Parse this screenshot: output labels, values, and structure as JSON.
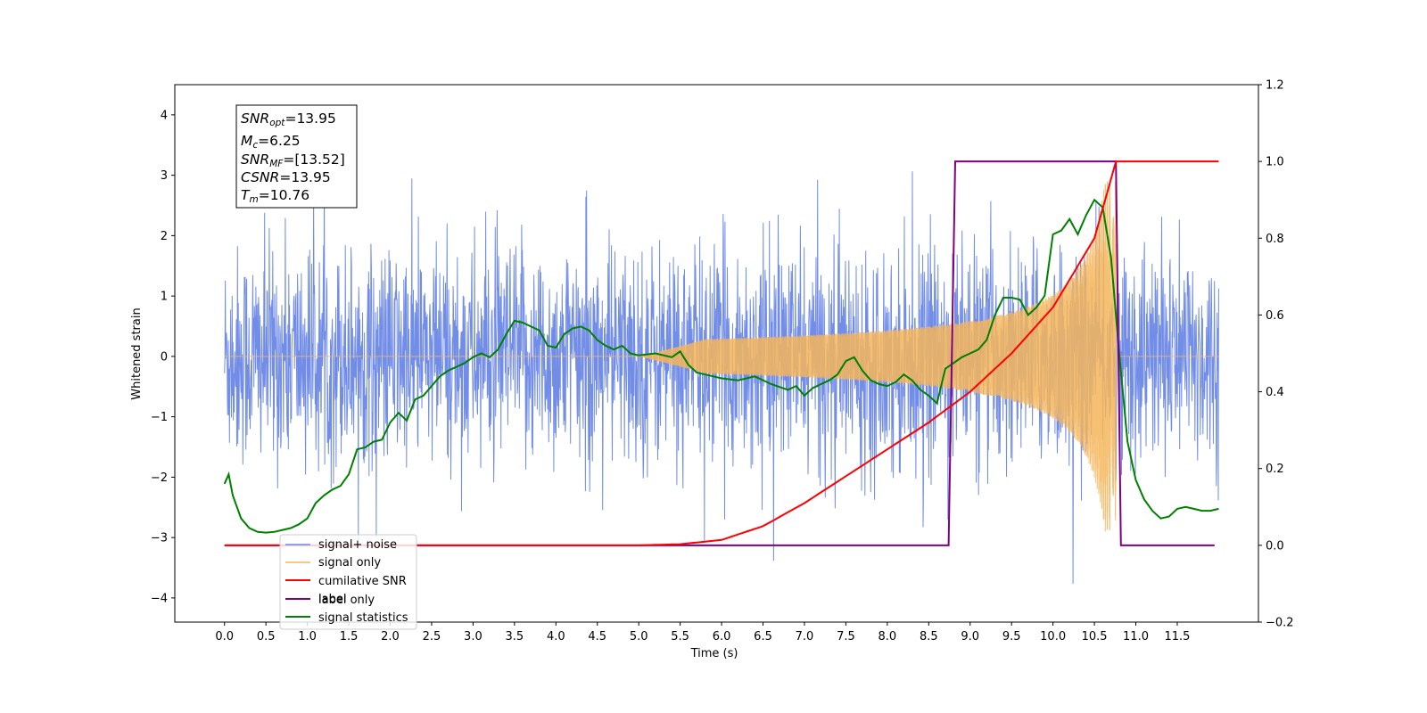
{
  "chart_data": {
    "type": "line",
    "xlabel": "Time (s)",
    "ylabel": "Whitened strain",
    "xlim": [
      -0.6,
      12.48
    ],
    "ylim": [
      -4.4,
      4.5
    ],
    "y2lim": [
      -0.2,
      1.2
    ],
    "x_ticks": [
      "0.0",
      "0.5",
      "1.0",
      "1.5",
      "2.0",
      "2.5",
      "3.0",
      "3.5",
      "4.0",
      "4.5",
      "5.0",
      "5.5",
      "6.0",
      "6.5",
      "7.0",
      "7.5",
      "8.0",
      "8.5",
      "9.0",
      "9.5",
      "10.0",
      "10.5",
      "11.0",
      "11.5"
    ],
    "y_ticks": [
      "−4",
      "−3",
      "−2",
      "−1",
      "0",
      "1",
      "2",
      "3",
      "4"
    ],
    "y2_ticks": [
      "−0.2",
      "0.0",
      "0.2",
      "0.4",
      "0.6",
      "0.8",
      "1.0",
      "1.2"
    ],
    "legend_position": "lower-left",
    "colors": {
      "signal_noise": "#6a87e6",
      "signal_only": "#f5b55a",
      "cumulative_snr": "#ff0000",
      "label": "#800080",
      "label_only": "#bcb8b0",
      "signal_statistics": "#008000"
    },
    "info_box": {
      "snr_opt": "13.95",
      "mc": "6.25",
      "snr_mf": "[13.52]",
      "csnr": "13.95",
      "tm": "10.76"
    },
    "series": [
      {
        "name": "signal+ noise",
        "noise_sigma": 0.9,
        "range": [
          0,
          12
        ]
      },
      {
        "name": "signal only",
        "chirp_start": 5.0,
        "chirp_end": 10.76,
        "peak_amplitude": 2.9
      },
      {
        "name": "cumilative SNR",
        "axis": "right",
        "x": [
          0.0,
          5.0,
          5.5,
          6.0,
          6.5,
          7.0,
          7.5,
          8.0,
          8.5,
          9.0,
          9.5,
          10.0,
          10.5,
          10.76,
          12.0
        ],
        "y": [
          0.0,
          0.0,
          0.003,
          0.014,
          0.05,
          0.11,
          0.18,
          0.25,
          0.32,
          0.4,
          0.5,
          0.62,
          0.8,
          1.0,
          1.0
        ]
      },
      {
        "name": "label",
        "axis": "right",
        "x": [
          0.0,
          8.74,
          8.82,
          10.76,
          10.82,
          11.95
        ],
        "y": [
          0.0,
          0.0,
          1.0,
          1.0,
          0.0,
          0.0
        ]
      },
      {
        "name": "label only",
        "axis": "right",
        "hidden": true
      },
      {
        "name": "signal statistics",
        "axis": "right",
        "x": [
          0.0,
          0.05,
          0.1,
          0.2,
          0.3,
          0.4,
          0.5,
          0.6,
          0.7,
          0.8,
          0.9,
          1.0,
          1.1,
          1.2,
          1.3,
          1.4,
          1.5,
          1.6,
          1.7,
          1.8,
          1.9,
          2.0,
          2.1,
          2.2,
          2.3,
          2.4,
          2.5,
          2.6,
          2.7,
          2.8,
          2.9,
          3.0,
          3.1,
          3.2,
          3.3,
          3.4,
          3.5,
          3.6,
          3.7,
          3.8,
          3.9,
          4.0,
          4.1,
          4.2,
          4.3,
          4.4,
          4.5,
          4.6,
          4.7,
          4.8,
          4.9,
          5.0,
          5.2,
          5.4,
          5.5,
          5.6,
          5.7,
          5.8,
          5.9,
          6.0,
          6.2,
          6.4,
          6.6,
          6.8,
          6.9,
          7.0,
          7.1,
          7.2,
          7.3,
          7.4,
          7.5,
          7.6,
          7.7,
          7.8,
          7.9,
          8.0,
          8.1,
          8.2,
          8.3,
          8.4,
          8.5,
          8.6,
          8.7,
          8.8,
          8.9,
          9.0,
          9.1,
          9.2,
          9.3,
          9.4,
          9.5,
          9.6,
          9.7,
          9.8,
          9.9,
          10.0,
          10.1,
          10.2,
          10.3,
          10.4,
          10.5,
          10.6,
          10.7,
          10.8,
          10.9,
          11.0,
          11.1,
          11.2,
          11.3,
          11.4,
          11.5,
          11.6,
          11.7,
          11.8,
          11.9,
          12.0
        ],
        "y": [
          0.16,
          0.185,
          0.13,
          0.07,
          0.045,
          0.035,
          0.033,
          0.035,
          0.04,
          0.045,
          0.055,
          0.07,
          0.11,
          0.13,
          0.145,
          0.155,
          0.185,
          0.25,
          0.255,
          0.27,
          0.275,
          0.32,
          0.345,
          0.325,
          0.38,
          0.39,
          0.415,
          0.44,
          0.455,
          0.465,
          0.475,
          0.49,
          0.5,
          0.49,
          0.51,
          0.55,
          0.585,
          0.58,
          0.57,
          0.56,
          0.52,
          0.515,
          0.55,
          0.565,
          0.57,
          0.56,
          0.535,
          0.52,
          0.51,
          0.52,
          0.5,
          0.495,
          0.5,
          0.49,
          0.505,
          0.47,
          0.45,
          0.445,
          0.44,
          0.435,
          0.43,
          0.44,
          0.42,
          0.405,
          0.415,
          0.39,
          0.41,
          0.42,
          0.43,
          0.445,
          0.48,
          0.49,
          0.455,
          0.43,
          0.42,
          0.415,
          0.425,
          0.445,
          0.43,
          0.405,
          0.39,
          0.37,
          0.46,
          0.475,
          0.49,
          0.5,
          0.51,
          0.535,
          0.6,
          0.645,
          0.645,
          0.64,
          0.6,
          0.62,
          0.65,
          0.81,
          0.82,
          0.85,
          0.81,
          0.86,
          0.9,
          0.88,
          0.75,
          0.5,
          0.27,
          0.17,
          0.12,
          0.09,
          0.07,
          0.075,
          0.095,
          0.1,
          0.095,
          0.09,
          0.09,
          0.095
        ]
      }
    ]
  }
}
